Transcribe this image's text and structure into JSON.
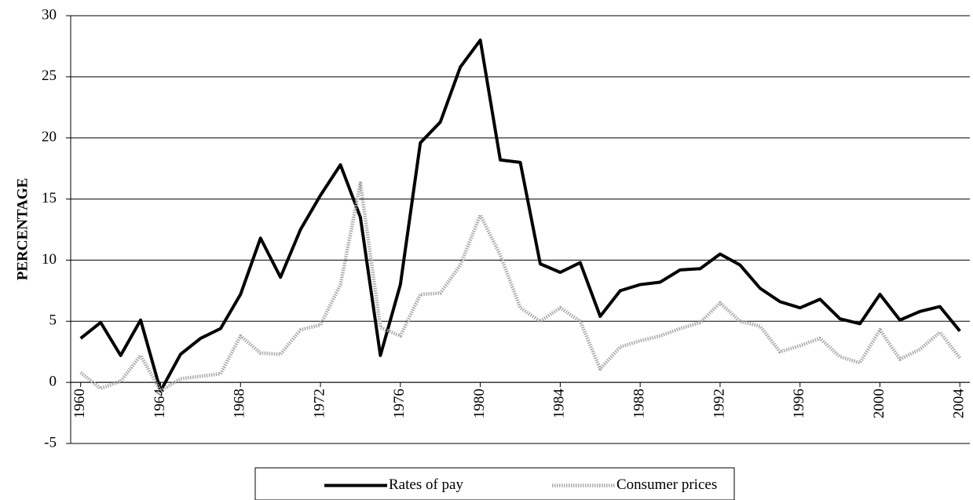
{
  "chart_data": {
    "type": "line",
    "y_label": "PERCENTAGE",
    "x": [
      1960,
      1961,
      1962,
      1963,
      1964,
      1965,
      1966,
      1967,
      1968,
      1969,
      1970,
      1971,
      1972,
      1973,
      1974,
      1975,
      1976,
      1977,
      1978,
      1979,
      1980,
      1981,
      1982,
      1983,
      1984,
      1985,
      1986,
      1987,
      1988,
      1989,
      1990,
      1991,
      1992,
      1993,
      1994,
      1995,
      1996,
      1997,
      1998,
      1999,
      2000,
      2001,
      2002,
      2003,
      2004
    ],
    "series": [
      {
        "name": "Rates of pay",
        "color": "#000000",
        "line_style": "solid",
        "values": [
          3.6,
          4.9,
          2.2,
          5.1,
          -0.7,
          2.3,
          3.6,
          4.4,
          7.2,
          11.8,
          8.6,
          12.5,
          15.3,
          17.8,
          13.5,
          2.2,
          8.0,
          19.6,
          21.3,
          25.8,
          28.0,
          18.2,
          18.0,
          9.7,
          9.0,
          9.8,
          5.4,
          7.5,
          8.0,
          8.2,
          9.2,
          9.3,
          10.5,
          9.6,
          7.7,
          6.6,
          6.1,
          6.8,
          5.2,
          4.8,
          7.2,
          5.1,
          5.8,
          6.2,
          4.2
        ]
      },
      {
        "name": "Consumer prices",
        "color": "#a8a8a8",
        "line_style": "dotted",
        "values": [
          0.8,
          -0.5,
          0.1,
          2.2,
          -0.7,
          0.3,
          0.5,
          0.7,
          3.8,
          2.4,
          2.3,
          4.3,
          4.7,
          8.0,
          16.3,
          4.5,
          3.8,
          7.2,
          7.3,
          9.6,
          13.7,
          10.4,
          6.1,
          5.0,
          6.1,
          5.0,
          1.1,
          2.9,
          3.4,
          3.8,
          4.4,
          4.9,
          6.5,
          5.0,
          4.6,
          2.5,
          3.0,
          3.6,
          2.1,
          1.6,
          4.3,
          1.9,
          2.7,
          4.1,
          2.0
        ]
      }
    ],
    "xlim": [
      1959.5,
      2004.5
    ],
    "xticks": [
      1960,
      1964,
      1968,
      1972,
      1976,
      1980,
      1984,
      1988,
      1992,
      1996,
      2000,
      2004
    ],
    "ylim": [
      -5,
      30
    ],
    "yticks": [
      -5,
      0,
      5,
      10,
      15,
      20,
      25,
      30
    ],
    "grid": true,
    "legend": "bottom"
  }
}
